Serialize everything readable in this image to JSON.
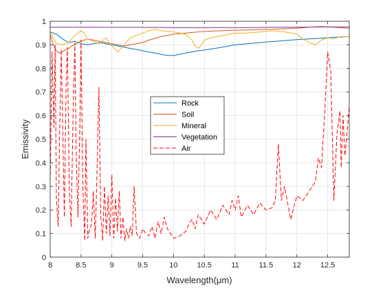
{
  "chart_data": {
    "type": "line",
    "xlabel": "Wavelength(μm)",
    "ylabel": "Emissivity",
    "xlim": [
      8,
      12.85
    ],
    "ylim": [
      0,
      1
    ],
    "grid": true,
    "legend_placement": "center",
    "x_ticks": [
      "8",
      "8.5",
      "9",
      "9.5",
      "10",
      "10.5",
      "11",
      "11.5",
      "12",
      "12.5"
    ],
    "y_ticks": [
      "0",
      "0.1",
      "0.2",
      "0.3",
      "0.4",
      "0.5",
      "0.6",
      "0.7",
      "0.8",
      "0.9",
      "1"
    ],
    "series": [
      {
        "name": "Rock",
        "color": "#0072BD",
        "dash": false,
        "x": [
          8.0,
          8.1,
          8.2,
          8.3,
          8.4,
          8.5,
          8.6,
          8.7,
          8.8,
          8.9,
          9.0,
          9.1,
          9.2,
          9.3,
          9.4,
          9.5,
          9.6,
          9.7,
          9.8,
          9.9,
          10.0,
          10.1,
          10.2,
          10.3,
          10.4,
          10.5,
          10.6,
          10.8,
          11.0,
          11.2,
          11.5,
          11.8,
          12.0,
          12.2,
          12.4,
          12.6,
          12.85
        ],
        "y": [
          0.955,
          0.945,
          0.925,
          0.91,
          0.915,
          0.905,
          0.9,
          0.905,
          0.91,
          0.905,
          0.9,
          0.895,
          0.89,
          0.885,
          0.88,
          0.875,
          0.87,
          0.865,
          0.86,
          0.855,
          0.855,
          0.86,
          0.865,
          0.87,
          0.875,
          0.878,
          0.882,
          0.89,
          0.9,
          0.905,
          0.912,
          0.918,
          0.922,
          0.925,
          0.928,
          0.932,
          0.935
        ]
      },
      {
        "name": "Soil",
        "color": "#D95319",
        "dash": false,
        "x": [
          8.0,
          8.05,
          8.1,
          8.15,
          8.2,
          8.25,
          8.3,
          8.35,
          8.4,
          8.45,
          8.5,
          8.55,
          8.6,
          8.7,
          8.8,
          8.9,
          9.0,
          9.1,
          9.2,
          9.3,
          9.4,
          9.5,
          9.6,
          9.8,
          10.0,
          10.2,
          10.4,
          10.6,
          10.8,
          11.0,
          11.2,
          11.4,
          11.6,
          11.8,
          12.0,
          12.2,
          12.4,
          12.6,
          12.85
        ],
        "y": [
          0.945,
          0.9,
          0.875,
          0.865,
          0.87,
          0.88,
          0.885,
          0.895,
          0.9,
          0.91,
          0.915,
          0.92,
          0.925,
          0.92,
          0.915,
          0.91,
          0.905,
          0.9,
          0.895,
          0.9,
          0.905,
          0.91,
          0.92,
          0.935,
          0.945,
          0.95,
          0.955,
          0.958,
          0.96,
          0.962,
          0.963,
          0.965,
          0.966,
          0.968,
          0.97,
          0.975,
          0.978,
          0.975,
          0.97
        ]
      },
      {
        "name": "Mineral",
        "color": "#EDB120",
        "dash": false,
        "x": [
          8.0,
          8.05,
          8.1,
          8.2,
          8.3,
          8.4,
          8.5,
          8.55,
          8.6,
          8.7,
          8.8,
          8.9,
          9.0,
          9.1,
          9.2,
          9.3,
          9.4,
          9.5,
          9.6,
          9.7,
          9.8,
          10.0,
          10.2,
          10.3,
          10.35,
          10.4,
          10.45,
          10.5,
          10.6,
          10.8,
          11.0,
          11.2,
          11.4,
          11.6,
          11.8,
          12.0,
          12.1,
          12.2,
          12.3,
          12.4,
          12.5,
          12.6,
          12.7,
          12.85
        ],
        "y": [
          0.96,
          0.93,
          0.905,
          0.9,
          0.91,
          0.94,
          0.96,
          0.95,
          0.925,
          0.915,
          0.905,
          0.93,
          0.895,
          0.87,
          0.9,
          0.93,
          0.94,
          0.95,
          0.96,
          0.965,
          0.96,
          0.955,
          0.945,
          0.92,
          0.895,
          0.885,
          0.9,
          0.92,
          0.93,
          0.94,
          0.95,
          0.95,
          0.955,
          0.96,
          0.955,
          0.945,
          0.925,
          0.91,
          0.9,
          0.92,
          0.93,
          0.925,
          0.935,
          0.935
        ]
      },
      {
        "name": "Vegetation",
        "color": "#7E2F8E",
        "dash": false,
        "x": [
          8.0,
          8.5,
          9.0,
          9.5,
          10.0,
          10.5,
          11.0,
          11.5,
          12.0,
          12.5,
          12.85
        ],
        "y": [
          0.975,
          0.975,
          0.974,
          0.974,
          0.973,
          0.973,
          0.973,
          0.974,
          0.975,
          0.976,
          0.976
        ]
      },
      {
        "name": "Air",
        "color": "#FF0000",
        "dash": true,
        "x": [
          8.0,
          8.03,
          8.06,
          8.08,
          8.1,
          8.13,
          8.15,
          8.18,
          8.21,
          8.23,
          8.26,
          8.28,
          8.31,
          8.34,
          8.37,
          8.4,
          8.42,
          8.45,
          8.48,
          8.5,
          8.53,
          8.56,
          8.58,
          8.61,
          8.64,
          8.67,
          8.7,
          8.73,
          8.76,
          8.79,
          8.82,
          8.85,
          8.88,
          8.91,
          8.94,
          8.97,
          9.0,
          9.03,
          9.06,
          9.09,
          9.12,
          9.15,
          9.18,
          9.21,
          9.24,
          9.27,
          9.3,
          9.33,
          9.36,
          9.4,
          9.45,
          9.5,
          9.55,
          9.6,
          9.65,
          9.7,
          9.75,
          9.8,
          9.85,
          9.9,
          10.0,
          10.1,
          10.2,
          10.25,
          10.3,
          10.35,
          10.4,
          10.5,
          10.6,
          10.7,
          10.8,
          10.9,
          10.95,
          11.0,
          11.05,
          11.1,
          11.2,
          11.3,
          11.4,
          11.5,
          11.6,
          11.65,
          11.7,
          11.75,
          11.8,
          11.9,
          12.0,
          12.1,
          12.2,
          12.3,
          12.35,
          12.4,
          12.45,
          12.5,
          12.55,
          12.6,
          12.65,
          12.7,
          12.72,
          12.75,
          12.78,
          12.8,
          12.85
        ],
        "y": [
          0.32,
          0.87,
          0.55,
          0.9,
          0.25,
          0.13,
          0.48,
          0.88,
          0.45,
          0.17,
          0.75,
          0.89,
          0.28,
          0.13,
          0.6,
          0.91,
          0.45,
          0.17,
          0.55,
          0.92,
          0.3,
          0.07,
          0.5,
          0.08,
          0.12,
          0.14,
          0.28,
          0.08,
          0.37,
          0.72,
          0.18,
          0.07,
          0.3,
          0.1,
          0.26,
          0.09,
          0.35,
          0.08,
          0.25,
          0.11,
          0.28,
          0.08,
          0.17,
          0.07,
          0.12,
          0.08,
          0.13,
          0.09,
          0.3,
          0.1,
          0.08,
          0.12,
          0.1,
          0.09,
          0.13,
          0.08,
          0.15,
          0.1,
          0.17,
          0.12,
          0.08,
          0.09,
          0.11,
          0.14,
          0.16,
          0.12,
          0.18,
          0.14,
          0.2,
          0.16,
          0.22,
          0.18,
          0.24,
          0.2,
          0.26,
          0.17,
          0.22,
          0.18,
          0.23,
          0.2,
          0.21,
          0.24,
          0.48,
          0.24,
          0.3,
          0.16,
          0.26,
          0.24,
          0.28,
          0.32,
          0.42,
          0.38,
          0.6,
          0.87,
          0.79,
          0.24,
          0.52,
          0.62,
          0.38,
          0.6,
          0.43,
          0.48,
          0.64
        ]
      }
    ]
  }
}
